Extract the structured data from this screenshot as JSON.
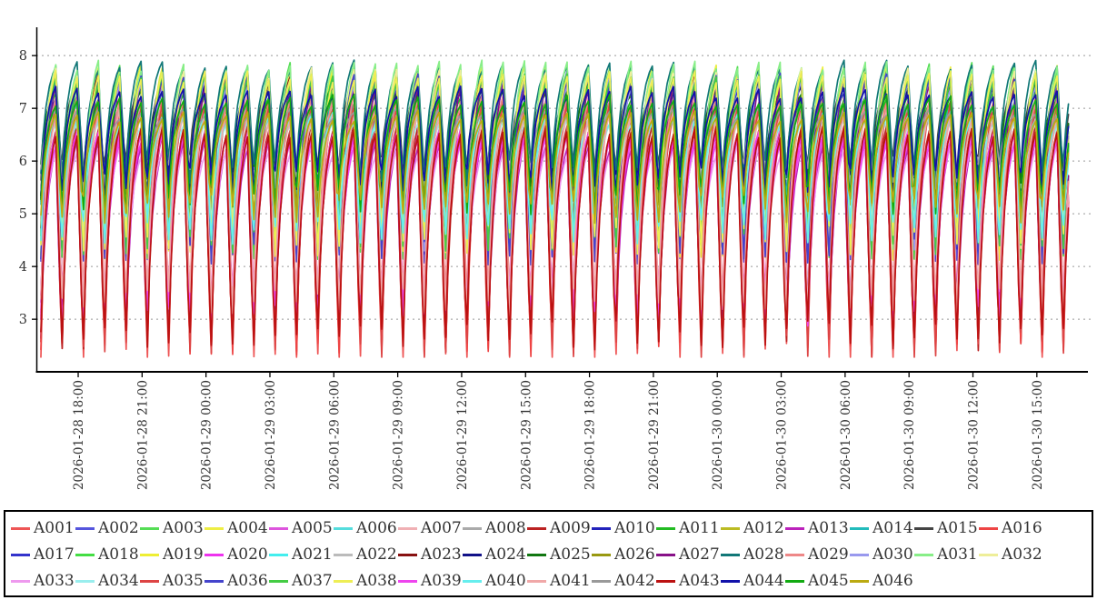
{
  "figure": {
    "background": "#ffffff",
    "axis_color": "#000000",
    "grid_color": "#999999",
    "tick_label_color": "#333333"
  },
  "chart_data": {
    "type": "line",
    "title": "",
    "xlabel": "",
    "ylabel": "",
    "x_start": "2026-01-28 16:15",
    "x_end": "2026-01-30 16:30",
    "duration_hours": 48.25,
    "y_ticks": [
      3,
      4,
      5,
      6,
      7,
      8
    ],
    "ylim": [
      2.02,
      8.55
    ],
    "grid": "horizontal-dashed",
    "legend_position": "bottom-box",
    "x_tick_hours_from_start": [
      1.75,
      4.75,
      7.75,
      10.75,
      13.75,
      16.75,
      19.75,
      22.75,
      25.75,
      28.75,
      31.75,
      34.75,
      37.75,
      40.75,
      43.75,
      46.75
    ],
    "x_tick_labels": [
      "2026-01-28 18:00",
      "2026-01-28 21:00",
      "2026-01-29 00:00",
      "2026-01-29 03:00",
      "2026-01-29 06:00",
      "2026-01-29 09:00",
      "2026-01-29 12:00",
      "2026-01-29 15:00",
      "2026-01-29 18:00",
      "2026-01-29 21:00",
      "2026-01-30 00:00",
      "2026-01-30 03:00",
      "2026-01-30 06:00",
      "2026-01-30 09:00",
      "2026-01-30 12:00",
      "2026-01-30 15:00"
    ],
    "waveform": "hourly sawtooth: slow concave rise to peak ~minute 42, steep fall to dip on the hour",
    "period_hours": 1,
    "cycle_minutes": [
      0,
      6,
      14,
      24,
      34,
      42,
      48,
      54
    ],
    "cycle_fractions": [
      0.0,
      0.35,
      0.62,
      0.82,
      0.94,
      1.0,
      0.6,
      0.25
    ],
    "noise": {
      "peak_jitter": 0.12,
      "dip_jitter": 0.28,
      "seed": 11
    },
    "series": [
      {
        "name": "A001",
        "color": "#ee5555",
        "peak": 7.1,
        "dip": 2.4
      },
      {
        "name": "A002",
        "color": "#5555dd",
        "peak": 7.6,
        "dip": 4.35
      },
      {
        "name": "A003",
        "color": "#55dd55",
        "peak": 7.75,
        "dip": 4.5
      },
      {
        "name": "A004",
        "color": "#eeee44",
        "peak": 7.7,
        "dip": 4.45
      },
      {
        "name": "A005",
        "color": "#dd55dd",
        "peak": 6.5,
        "dip": 3.05
      },
      {
        "name": "A006",
        "color": "#55dddd",
        "peak": 6.9,
        "dip": 4.6
      },
      {
        "name": "A007",
        "color": "#f0b0b4",
        "peak": 6.9,
        "dip": 3.2
      },
      {
        "name": "A008",
        "color": "#aaaaaa",
        "peak": 7.0,
        "dip": 5.6
      },
      {
        "name": "A009",
        "color": "#bb2222",
        "peak": 6.6,
        "dip": 2.65
      },
      {
        "name": "A010",
        "color": "#2222bb",
        "peak": 7.3,
        "dip": 5.5
      },
      {
        "name": "A011",
        "color": "#22bb22",
        "peak": 7.2,
        "dip": 5.2
      },
      {
        "name": "A012",
        "color": "#bbbb22",
        "peak": 6.9,
        "dip": 5.0
      },
      {
        "name": "A013",
        "color": "#bb22bb",
        "peak": 6.3,
        "dip": 2.9
      },
      {
        "name": "A014",
        "color": "#22bbbb",
        "peak": 7.0,
        "dip": 5.3
      },
      {
        "name": "A015",
        "color": "#444444",
        "peak": 7.4,
        "dip": 5.85
      },
      {
        "name": "A016",
        "color": "#ee4444",
        "peak": 7.05,
        "dip": 2.55
      },
      {
        "name": "A017",
        "color": "#3333cc",
        "peak": 7.45,
        "dip": 4.5
      },
      {
        "name": "A018",
        "color": "#44dd44",
        "peak": 7.5,
        "dip": 4.4
      },
      {
        "name": "A019",
        "color": "#eeee33",
        "peak": 7.55,
        "dip": 4.4
      },
      {
        "name": "A020",
        "color": "#ee33ee",
        "peak": 6.45,
        "dip": 3.4
      },
      {
        "name": "A021",
        "color": "#44eeee",
        "peak": 6.85,
        "dip": 4.65
      },
      {
        "name": "A022",
        "color": "#bbbbbb",
        "peak": 6.95,
        "dip": 5.65
      },
      {
        "name": "A023",
        "color": "#881111",
        "peak": 7.55,
        "dip": 4.6
      },
      {
        "name": "A024",
        "color": "#111188",
        "peak": 7.35,
        "dip": 5.55
      },
      {
        "name": "A025",
        "color": "#117711",
        "peak": 7.35,
        "dip": 5.7
      },
      {
        "name": "A026",
        "color": "#999911",
        "peak": 6.95,
        "dip": 5.15
      },
      {
        "name": "A027",
        "color": "#881188",
        "peak": 7.5,
        "dip": 3.15
      },
      {
        "name": "A028",
        "color": "#117777",
        "peak": 7.8,
        "dip": 5.8
      },
      {
        "name": "A029",
        "color": "#ee8888",
        "peak": 7.15,
        "dip": 3.3
      },
      {
        "name": "A030",
        "color": "#9999ee",
        "peak": 7.5,
        "dip": 4.55
      },
      {
        "name": "A031",
        "color": "#88ee88",
        "peak": 7.8,
        "dip": 4.6
      },
      {
        "name": "A032",
        "color": "#eeee99",
        "peak": 7.65,
        "dip": 4.55
      },
      {
        "name": "A033",
        "color": "#ee99ee",
        "peak": 6.2,
        "dip": 3.4
      },
      {
        "name": "A034",
        "color": "#99eeee",
        "peak": 6.75,
        "dip": 4.75
      },
      {
        "name": "A035",
        "color": "#dd4444",
        "peak": 7.0,
        "dip": 2.5
      },
      {
        "name": "A036",
        "color": "#4444cc",
        "peak": 7.55,
        "dip": 4.3
      },
      {
        "name": "A037",
        "color": "#44cc44",
        "peak": 7.55,
        "dip": 4.5
      },
      {
        "name": "A038",
        "color": "#eeee55",
        "peak": 7.6,
        "dip": 4.5
      },
      {
        "name": "A039",
        "color": "#ee44ee",
        "peak": 6.4,
        "dip": 3.1
      },
      {
        "name": "A040",
        "color": "#66eeee",
        "peak": 6.8,
        "dip": 4.7
      },
      {
        "name": "A041",
        "color": "#f0a8a8",
        "peak": 6.85,
        "dip": 3.3
      },
      {
        "name": "A042",
        "color": "#999999",
        "peak": 6.9,
        "dip": 5.7
      },
      {
        "name": "A043",
        "color": "#bb1111",
        "peak": 6.55,
        "dip": 2.7
      },
      {
        "name": "A044",
        "color": "#1111aa",
        "peak": 7.3,
        "dip": 5.6
      },
      {
        "name": "A045",
        "color": "#11aa11",
        "peak": 7.15,
        "dip": 5.25
      },
      {
        "name": "A046",
        "color": "#bbaa11",
        "peak": 6.85,
        "dip": 5.1
      }
    ]
  }
}
